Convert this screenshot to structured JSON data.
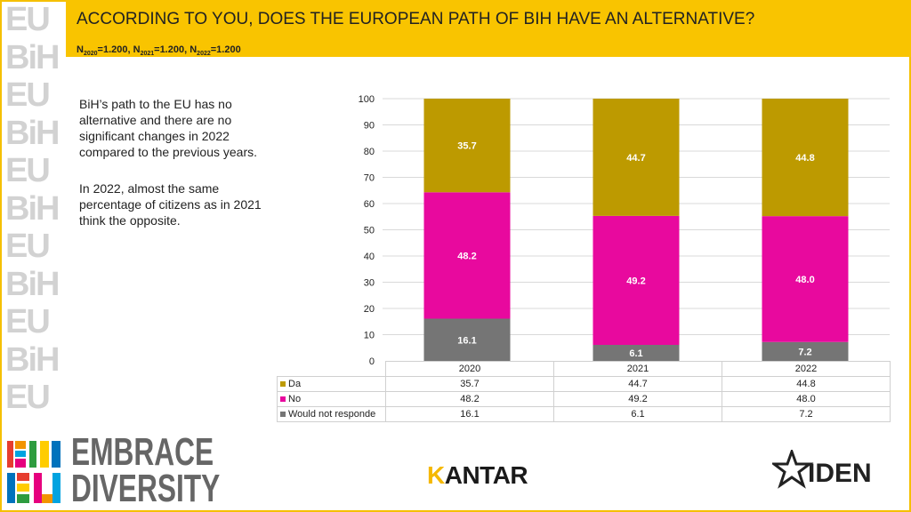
{
  "header": {
    "title": "ACCORDING TO YOU, DOES THE EUROPEAN PATH OF BIH HAVE AN ALTERNATIVE?",
    "n_parts": [
      {
        "label": "N",
        "sub": "2020",
        "value": "=1.200, "
      },
      {
        "label": "N",
        "sub": "2021",
        "value": "=1.200, "
      },
      {
        "label": "N",
        "sub": "2022",
        "value": "=1.200"
      }
    ]
  },
  "description": {
    "p1": [
      "BiH’s path to the EU has no",
      "alternative and there are no",
      "significant changes in 2022",
      "compared to the previous years."
    ],
    "p2": [
      "In 2022, almost the same",
      "percentage of citizens as in 2021",
      "think the opposite."
    ]
  },
  "colors": {
    "da": "#bd9a00",
    "no": "#e8099e",
    "wnr": "#757575",
    "header": "#f9c400"
  },
  "chart_data": {
    "type": "bar",
    "stacked": true,
    "title": "ACCORDING TO YOU, DOES THE EUROPEAN PATH OF BIH HAVE AN ALTERNATIVE?",
    "categories": [
      "2020",
      "2021",
      "2022"
    ],
    "series": [
      {
        "name": "Would not responde",
        "key": "wnr",
        "values": [
          16.1,
          6.1,
          7.2
        ]
      },
      {
        "name": "No",
        "key": "no",
        "values": [
          48.2,
          49.2,
          48.0
        ]
      },
      {
        "name": "Da",
        "key": "da",
        "values": [
          35.7,
          44.7,
          44.8
        ]
      }
    ],
    "ylim": [
      0,
      100
    ],
    "yticks": [
      0,
      10,
      20,
      30,
      40,
      50,
      60,
      70,
      80,
      90,
      100
    ],
    "grid": true,
    "legend": "data table below chart"
  },
  "table": {
    "headers": [
      "2020",
      "2021",
      "2022"
    ],
    "rows": [
      {
        "label": "Da",
        "key": "da",
        "values": [
          "35.7",
          "44.7",
          "44.8"
        ]
      },
      {
        "label": "No",
        "key": "no",
        "values": [
          "48.2",
          "49.2",
          "48.0"
        ]
      },
      {
        "label": "Would not responde",
        "key": "wnr",
        "values": [
          "16.1",
          "6.1",
          "7.2"
        ]
      }
    ]
  },
  "logos": {
    "bih_top": "BiH",
    "bih_bottom": "EU",
    "embrace_1": "EMBRACE",
    "embrace_2": "DIVERSITY",
    "kantar_k": "K",
    "kantar_rest": "ANTAR",
    "iden": "IDEN"
  },
  "strip_glyphs": [
    "EU",
    "BiH",
    "EU",
    "BiH",
    "EU",
    "BiH",
    "EU",
    "BiH",
    "EU",
    "BiH",
    "EU"
  ]
}
